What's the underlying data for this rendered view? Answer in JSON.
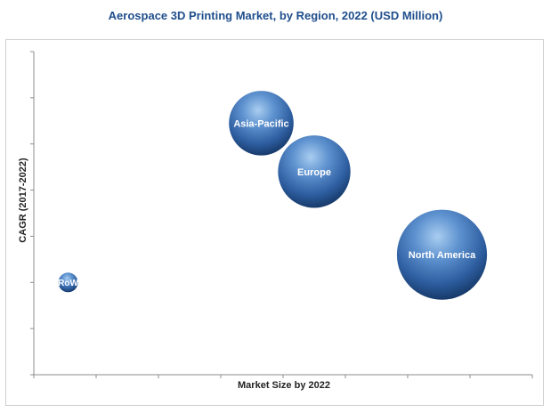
{
  "chart_data": {
    "type": "scatter",
    "title": "Aerospace 3D Printing Market, by Region, 2022 (USD Million)",
    "xlabel": "Market Size by 2022",
    "ylabel": "CAGR (2017-2022)",
    "xlim": [
      0,
      8
    ],
    "ylim": [
      0,
      7
    ],
    "grid": false,
    "series": [
      {
        "name": "RoW",
        "x": 0.55,
        "y": 2.0,
        "size": 1.0
      },
      {
        "name": "Asia-Pacific",
        "x": 3.65,
        "y": 5.45,
        "size": 3.3
      },
      {
        "name": "Europe",
        "x": 4.5,
        "y": 4.4,
        "size": 3.7
      },
      {
        "name": "North America",
        "x": 6.55,
        "y": 2.6,
        "size": 4.6
      }
    ],
    "colors": {
      "bubble_light": "#9cc3ea",
      "bubble_mid": "#3f73b6",
      "bubble_dark": "#1b3f73",
      "axis": "#8c8c8c",
      "title": "#1f4e8c"
    }
  }
}
